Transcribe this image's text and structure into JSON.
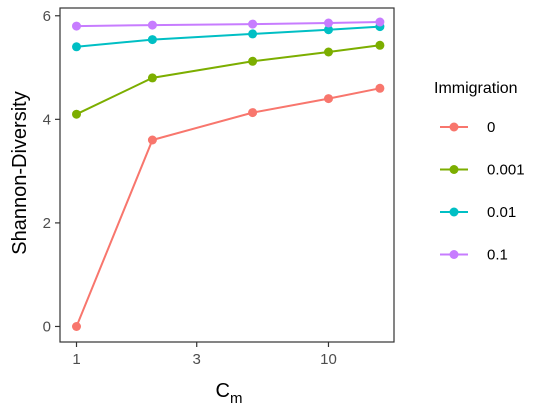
{
  "chart_data": {
    "type": "line",
    "x_scale": "log",
    "xlabel_main": "C",
    "xlabel_sub": "m",
    "ylabel": "Shannon-Diversity",
    "xlim": [
      0.86,
      18.2
    ],
    "ylim": [
      -0.3,
      6.15
    ],
    "x_ticks": [
      1,
      3,
      10
    ],
    "x_tick_labels": [
      "1",
      "3",
      "10"
    ],
    "y_ticks": [
      0,
      2,
      4,
      6
    ],
    "y_tick_labels": [
      "0",
      "2",
      "4",
      "6"
    ],
    "grid": false,
    "legend_title": "Immigration",
    "legend_position": "right",
    "x": [
      1,
      2,
      5,
      10,
      16
    ],
    "series": [
      {
        "name": "0",
        "color": "#F8766D",
        "values": [
          0.0,
          3.6,
          4.13,
          4.4,
          4.6
        ]
      },
      {
        "name": "0.001",
        "color": "#7CAE00",
        "values": [
          4.1,
          4.8,
          5.12,
          5.3,
          5.43
        ]
      },
      {
        "name": "0.01",
        "color": "#00BFC4",
        "values": [
          5.4,
          5.54,
          5.65,
          5.73,
          5.79
        ]
      },
      {
        "name": "0.1",
        "color": "#C77CFF",
        "values": [
          5.8,
          5.82,
          5.84,
          5.86,
          5.88
        ]
      }
    ]
  }
}
